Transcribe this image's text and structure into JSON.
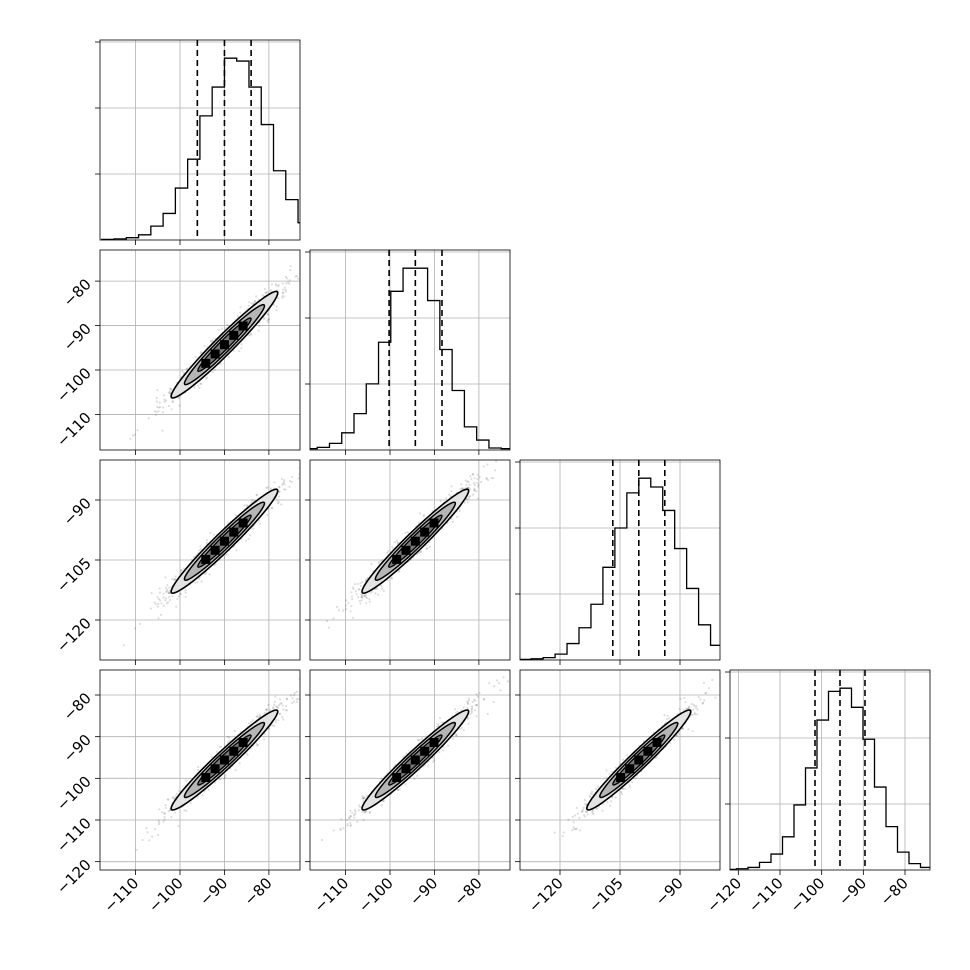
{
  "chart_data": {
    "type": "corner",
    "title": "",
    "legend": "none",
    "parameters": [
      {
        "label": "",
        "range": [
          -118,
          -73
        ],
        "ticks": [
          -110,
          -100,
          -90,
          -80
        ],
        "tick_labels": [
          "−110",
          "−100",
          "−90",
          "−80"
        ],
        "quantiles": [
          -96.1,
          -90.0,
          -84.0
        ],
        "median": -90.0,
        "spread": 6.0
      },
      {
        "label": "",
        "range": [
          -118,
          -73
        ],
        "ticks": [
          -110,
          -100,
          -90,
          -80
        ],
        "tick_labels": [
          "−110",
          "−100",
          "−90",
          "−80"
        ],
        "quantiles": [
          -100.2,
          -94.3,
          -88.3
        ],
        "median": -94.3,
        "spread": 6.0
      },
      {
        "label": "",
        "range": [
          -130,
          -80
        ],
        "ticks": [
          -120,
          -105,
          -90
        ],
        "tick_labels": [
          "−120",
          "−105",
          "−90"
        ],
        "quantiles": [
          -106.8,
          -100.3,
          -93.8
        ],
        "median": -100.3,
        "spread": 6.5
      },
      {
        "label": "",
        "range": [
          -122,
          -74
        ],
        "ticks": [
          -120,
          -110,
          -100,
          -90,
          -80
        ],
        "tick_labels": [
          "−120",
          "−110",
          "−100",
          "−90",
          "−80"
        ],
        "quantiles": [
          -101.6,
          -95.6,
          -89.6
        ],
        "median": -95.6,
        "spread": 6.0
      }
    ],
    "histogram_counts": [
      [
        1,
        2,
        4,
        9,
        24,
        46,
        90,
        140,
        215,
        265,
        315,
        310,
        265,
        200,
        120,
        70,
        30,
        12,
        4,
        1
      ],
      [
        1,
        2,
        4,
        10,
        26,
        55,
        100,
        163,
        240,
        275,
        275,
        226,
        152,
        90,
        35,
        15,
        3,
        2,
        1,
        0
      ],
      [
        1,
        2,
        4,
        10,
        28,
        55,
        95,
        158,
        225,
        285,
        310,
        295,
        255,
        190,
        122,
        60,
        25,
        10,
        3,
        1
      ],
      [
        1,
        2,
        4,
        12,
        25,
        52,
        102,
        160,
        235,
        280,
        285,
        255,
        205,
        130,
        68,
        28,
        10,
        4,
        1,
        0
      ]
    ],
    "correlation": 0.97,
    "contour_levels": [
      0.5,
      1.0,
      1.5,
      2.0
    ],
    "grid": true
  }
}
